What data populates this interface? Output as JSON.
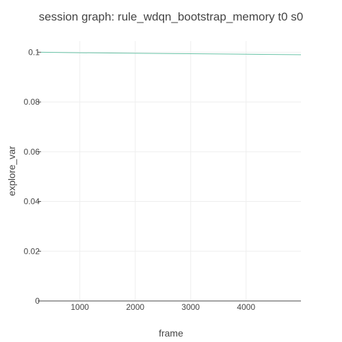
{
  "chart_data": {
    "type": "line",
    "title": "session graph: rule_wdqn_bootstrap_memory t0 s0",
    "xlabel": "frame",
    "ylabel": "explore_var",
    "xlim": [
      300,
      4990
    ],
    "ylim": [
      0,
      0.1045
    ],
    "xticks": [
      1000,
      2000,
      3000,
      4000
    ],
    "xtick_labels": [
      "1000",
      "2000",
      "3000",
      "4000"
    ],
    "yticks": [
      0,
      0.02,
      0.04,
      0.06,
      0.08,
      0.1
    ],
    "ytick_labels": [
      "0",
      "0.02",
      "0.04",
      "0.06",
      "0.08",
      "0.1"
    ],
    "grid": true,
    "series": [
      {
        "color": "#66c2a5",
        "x": [
          300,
          1000,
          2000,
          3000,
          4000,
          4990
        ],
        "y": [
          0.1,
          0.0998,
          0.0996,
          0.0994,
          0.0992,
          0.099
        ]
      }
    ]
  }
}
